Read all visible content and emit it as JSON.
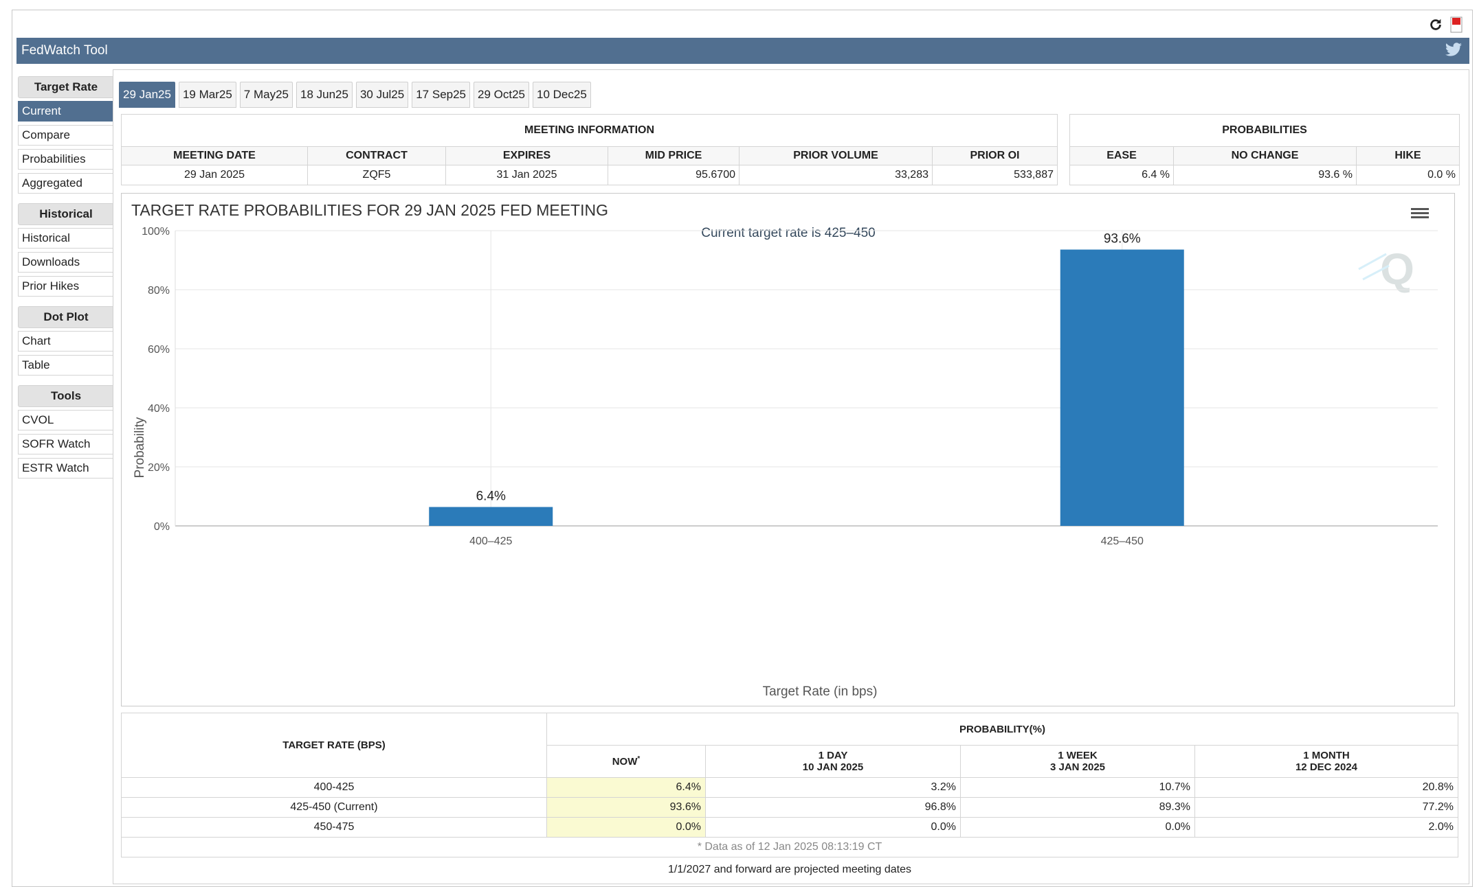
{
  "app": {
    "title": "FedWatch Tool"
  },
  "sidebar": {
    "groups": [
      {
        "header": "Target Rate",
        "items": [
          "Current",
          "Compare",
          "Probabilities",
          "Aggregated"
        ]
      },
      {
        "header": "Historical",
        "items": [
          "Historical",
          "Downloads",
          "Prior Hikes"
        ]
      },
      {
        "header": "Dot Plot",
        "items": [
          "Chart",
          "Table"
        ]
      },
      {
        "header": "Tools",
        "items": [
          "CVOL",
          "SOFR Watch",
          "ESTR Watch"
        ]
      }
    ],
    "active_item": "Current"
  },
  "tabs": [
    "29 Jan25",
    "19 Mar25",
    "7 May25",
    "18 Jun25",
    "30 Jul25",
    "17 Sep25",
    "29 Oct25",
    "10 Dec25"
  ],
  "active_tab": "29 Jan25",
  "meeting_info": {
    "title": "MEETING INFORMATION",
    "headers": [
      "MEETING DATE",
      "CONTRACT",
      "EXPIRES",
      "MID PRICE",
      "PRIOR VOLUME",
      "PRIOR OI"
    ],
    "values": [
      "29 Jan 2025",
      "ZQF5",
      "31 Jan 2025",
      "95.6700",
      "33,283",
      "533,887"
    ]
  },
  "probabilities": {
    "title": "PROBABILITIES",
    "headers": [
      "EASE",
      "NO CHANGE",
      "HIKE"
    ],
    "values": [
      "6.4 %",
      "93.6 %",
      "0.0 %"
    ]
  },
  "chart_data": {
    "type": "bar",
    "title": "TARGET RATE PROBABILITIES FOR 29 JAN 2025 FED MEETING",
    "subtitle": "Current target rate is 425–450",
    "xlabel": "Target Rate (in bps)",
    "ylabel": "Probability",
    "categories": [
      "400–425",
      "425–450"
    ],
    "values": [
      6.4,
      93.6
    ],
    "data_labels": [
      "6.4%",
      "93.6%"
    ],
    "ylim": [
      0,
      100
    ],
    "yticks": [
      "0%",
      "20%",
      "40%",
      "60%",
      "80%",
      "100%"
    ],
    "grid": true,
    "bar_color": "#2b7bb9"
  },
  "rates_table": {
    "header_rate": "TARGET RATE (BPS)",
    "header_prob": "PROBABILITY(%)",
    "columns": [
      {
        "label": "NOW",
        "sub": ""
      },
      {
        "label": "1 DAY",
        "sub": "10 JAN 2025"
      },
      {
        "label": "1 WEEK",
        "sub": "3 JAN 2025"
      },
      {
        "label": "1 MONTH",
        "sub": "12 DEC 2024"
      }
    ],
    "rows": [
      {
        "rate": "400-425",
        "values": [
          "6.4%",
          "3.2%",
          "10.7%",
          "20.8%"
        ]
      },
      {
        "rate": "425-450 (Current)",
        "values": [
          "93.6%",
          "96.8%",
          "89.3%",
          "77.2%"
        ]
      },
      {
        "rate": "450-475",
        "values": [
          "0.0%",
          "0.0%",
          "0.0%",
          "2.0%"
        ]
      }
    ],
    "note": "* Data as of 12 Jan 2025 08:13:19 CT"
  },
  "footer": "1/1/2027 and forward are projected meeting dates"
}
